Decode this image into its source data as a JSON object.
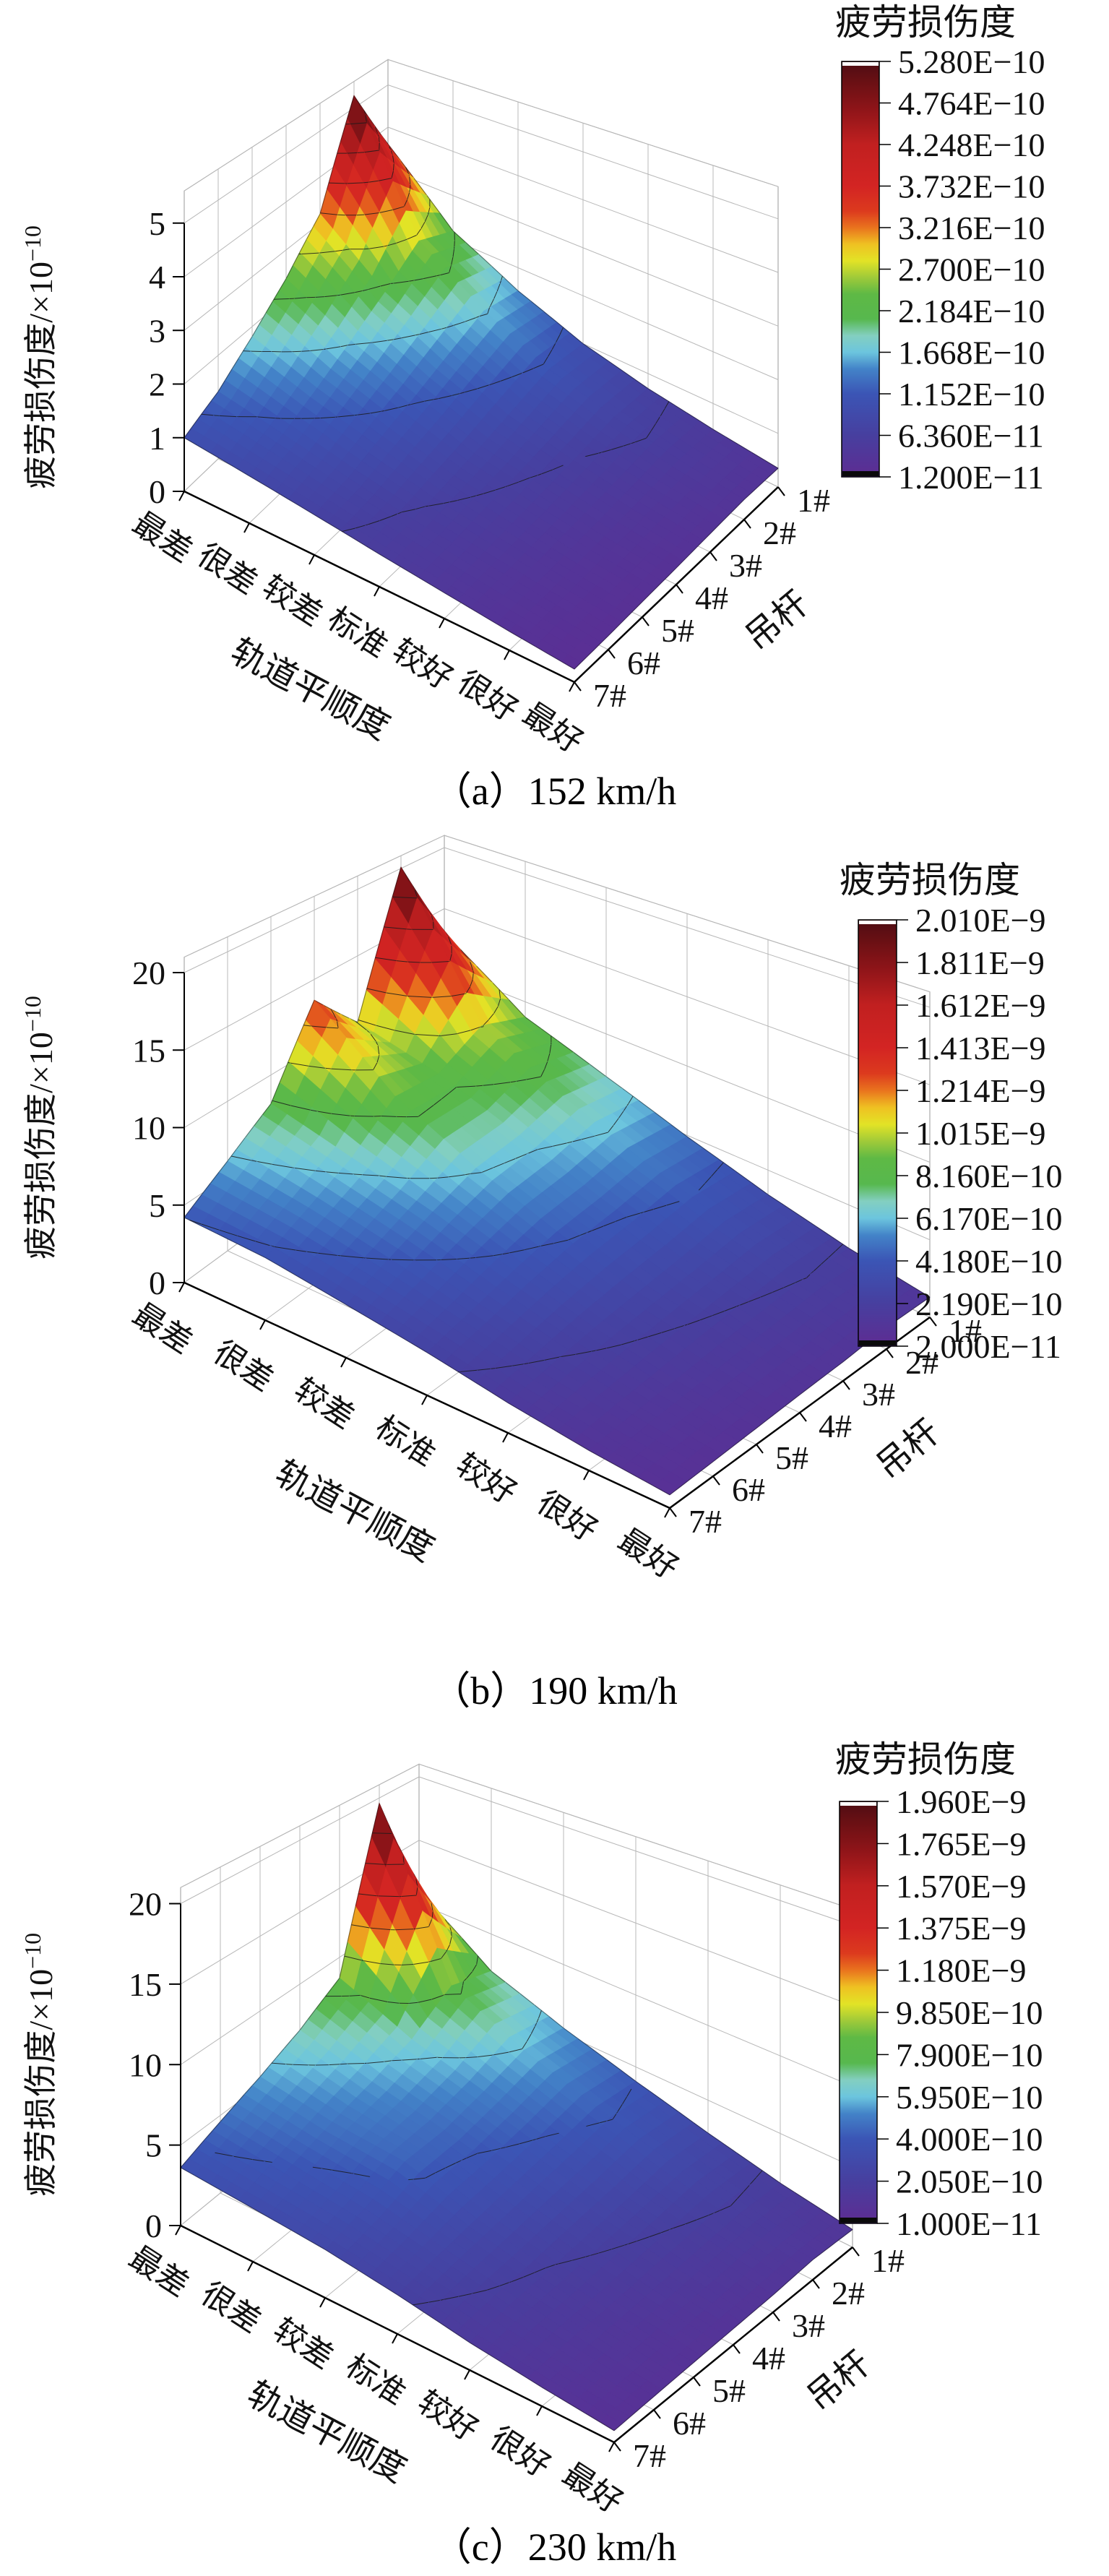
{
  "figure": {
    "description": "三个三维曲面图：不同车速下吊杆疲劳损伤度随轨道平顺度变化",
    "panel_captions": [
      "（a）152 km/h",
      "（b）190 km/h",
      "（c）230 km/h"
    ]
  },
  "chart_data": [
    {
      "type": "surface3d",
      "caption": "（a）152 km/h",
      "speed": "152 km/h",
      "z_axis": {
        "label_base": "疲劳损伤度/×10",
        "label_exp": "−10",
        "ticks": [
          "0",
          "1",
          "2",
          "3",
          "4",
          "5"
        ]
      },
      "x_axis": {
        "title": "轨道平顺度",
        "categories": [
          "最差",
          "很差",
          "较差",
          "标准",
          "较好",
          "很好",
          "最好"
        ]
      },
      "y_axis": {
        "title": "吊杆",
        "categories": [
          "1#",
          "2#",
          "3#",
          "4#",
          "5#",
          "6#",
          "7#"
        ]
      },
      "colorbar": {
        "title": "疲劳损伤度",
        "position": "right",
        "tick_labels": [
          "5.280E−10",
          "4.764E−10",
          "4.248E−10",
          "3.732E−10",
          "3.216E−10",
          "2.700E−10",
          "2.184E−10",
          "1.668E−10",
          "1.152E−10",
          "6.360E−11",
          "1.200E−11"
        ]
      },
      "values_unit": "×10⁻¹⁰",
      "values_rows_are_x_categories": true,
      "values_cols_are_y_categories": true,
      "values": [
        [
          3.6,
          5.28,
          3.2,
          2.4,
          1.8,
          1.3,
          1.0
        ],
        [
          2.2,
          2.6,
          2.1,
          1.7,
          1.35,
          1.05,
          0.85
        ],
        [
          1.5,
          1.7,
          1.45,
          1.2,
          1.0,
          0.8,
          0.7
        ],
        [
          1.0,
          1.1,
          0.95,
          0.8,
          0.7,
          0.6,
          0.55
        ],
        [
          0.7,
          0.75,
          0.65,
          0.58,
          0.52,
          0.46,
          0.42
        ],
        [
          0.5,
          0.52,
          0.46,
          0.4,
          0.36,
          0.33,
          0.3
        ],
        [
          0.35,
          0.36,
          0.32,
          0.28,
          0.25,
          0.22,
          0.2
        ]
      ],
      "grid": true
    },
    {
      "type": "surface3d",
      "caption": "（b）190 km/h",
      "speed": "190 km/h",
      "z_axis": {
        "label_base": "疲劳损伤度/×10",
        "label_exp": "−10",
        "ticks": [
          "0",
          "5",
          "10",
          "15",
          "20"
        ]
      },
      "x_axis": {
        "title": "轨道平顺度",
        "categories": [
          "最差",
          "很差",
          "较差",
          "标准",
          "较好",
          "很好",
          "最好"
        ]
      },
      "y_axis": {
        "title": "吊杆",
        "categories": [
          "1#",
          "2#",
          "3#",
          "4#",
          "5#",
          "6#",
          "7#"
        ]
      },
      "colorbar": {
        "title": "疲劳损伤度",
        "position": "right",
        "tick_labels": [
          "2.010E−9",
          "1.811E−9",
          "1.612E−9",
          "1.413E−9",
          "1.214E−9",
          "1.015E−9",
          "8.160E−10",
          "6.170E−10",
          "4.180E−10",
          "2.190E−10",
          "2.000E−11"
        ]
      },
      "values_unit": "×10⁻¹⁰",
      "values_rows_are_x_categories": true,
      "values_cols_are_y_categories": true,
      "values": [
        [
          13.0,
          20.1,
          10.0,
          13.5,
          8.0,
          6.0,
          4.2
        ],
        [
          8.8,
          10.2,
          8.6,
          8.9,
          6.6,
          5.2,
          3.9
        ],
        [
          6.8,
          7.4,
          6.6,
          6.3,
          5.3,
          4.2,
          3.2
        ],
        [
          4.9,
          5.2,
          4.7,
          4.4,
          3.8,
          3.1,
          2.5
        ],
        [
          3.3,
          3.5,
          3.1,
          2.8,
          2.5,
          2.1,
          1.7
        ],
        [
          2.1,
          2.2,
          2.0,
          1.8,
          1.55,
          1.35,
          1.1
        ],
        [
          1.3,
          1.35,
          1.15,
          1.05,
          0.92,
          0.8,
          0.7
        ]
      ],
      "grid": true
    },
    {
      "type": "surface3d",
      "caption": "（c）230 km/h",
      "speed": "230 km/h",
      "z_axis": {
        "label_base": "疲劳损伤度/×10",
        "label_exp": "−10",
        "ticks": [
          "0",
          "5",
          "10",
          "15",
          "20"
        ]
      },
      "x_axis": {
        "title": "轨道平顺度",
        "categories": [
          "最差",
          "很差",
          "较差",
          "标准",
          "较好",
          "很好",
          "最好"
        ]
      },
      "y_axis": {
        "title": "吊杆",
        "categories": [
          "1#",
          "2#",
          "3#",
          "4#",
          "5#",
          "6#",
          "7#"
        ]
      },
      "colorbar": {
        "title": "疲劳损伤度",
        "position": "right",
        "tick_labels": [
          "1.960E−9",
          "1.765E−9",
          "1.570E−9",
          "1.375E−9",
          "1.180E−9",
          "9.850E−10",
          "7.900E−10",
          "5.950E−10",
          "4.000E−10",
          "2.050E−10",
          "1.000E−11"
        ]
      },
      "values_unit": "×10⁻¹⁰",
      "values_rows_are_x_categories": true,
      "values_cols_are_y_categories": true,
      "values": [
        [
          11.0,
          19.6,
          8.5,
          6.8,
          5.6,
          4.6,
          3.6
        ],
        [
          7.2,
          8.2,
          6.4,
          5.5,
          4.8,
          4.0,
          3.2
        ],
        [
          5.4,
          5.9,
          5.1,
          4.5,
          4.4,
          3.4,
          2.8
        ],
        [
          4.0,
          4.3,
          3.8,
          3.4,
          3.0,
          2.6,
          2.2
        ],
        [
          2.8,
          3.0,
          2.6,
          2.3,
          2.0,
          1.8,
          1.5
        ],
        [
          1.8,
          1.9,
          1.7,
          1.5,
          1.3,
          1.2,
          1.0
        ],
        [
          1.1,
          1.2,
          1.0,
          0.9,
          0.8,
          0.7,
          0.6
        ]
      ],
      "grid": true
    }
  ]
}
